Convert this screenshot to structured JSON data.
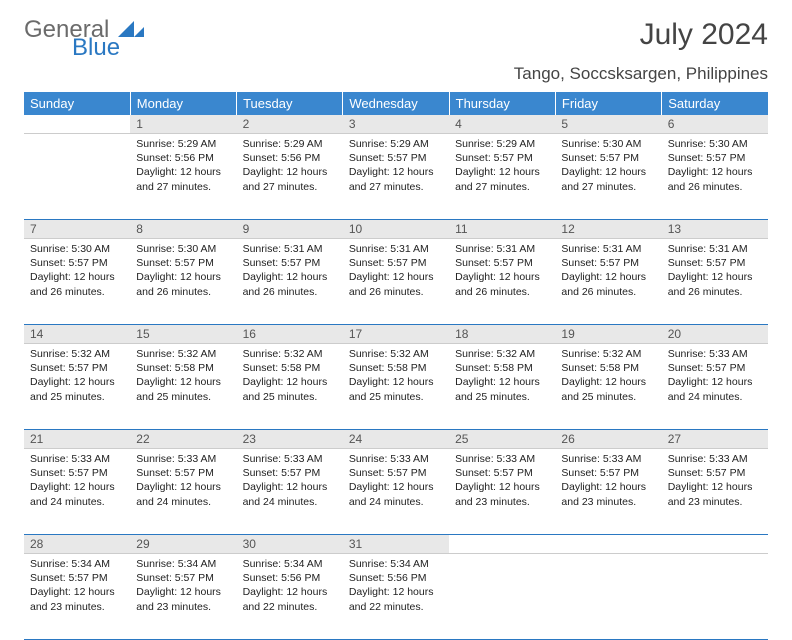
{
  "logo": {
    "word1": "General",
    "word2": "Blue"
  },
  "title": "July 2024",
  "location": "Tango, Soccsksargen, Philippines",
  "colors": {
    "header_bg": "#3a87cf",
    "header_text": "#ffffff",
    "daynum_bg": "#e8e8e8",
    "rule": "#2a78c2",
    "logo_gray": "#6b6b6b",
    "logo_blue": "#2a78c2"
  },
  "weekdays": [
    "Sunday",
    "Monday",
    "Tuesday",
    "Wednesday",
    "Thursday",
    "Friday",
    "Saturday"
  ],
  "weeks": [
    [
      null,
      {
        "n": "1",
        "sr": "5:29 AM",
        "ss": "5:56 PM",
        "dl": "12 hours and 27 minutes."
      },
      {
        "n": "2",
        "sr": "5:29 AM",
        "ss": "5:56 PM",
        "dl": "12 hours and 27 minutes."
      },
      {
        "n": "3",
        "sr": "5:29 AM",
        "ss": "5:57 PM",
        "dl": "12 hours and 27 minutes."
      },
      {
        "n": "4",
        "sr": "5:29 AM",
        "ss": "5:57 PM",
        "dl": "12 hours and 27 minutes."
      },
      {
        "n": "5",
        "sr": "5:30 AM",
        "ss": "5:57 PM",
        "dl": "12 hours and 27 minutes."
      },
      {
        "n": "6",
        "sr": "5:30 AM",
        "ss": "5:57 PM",
        "dl": "12 hours and 26 minutes."
      }
    ],
    [
      {
        "n": "7",
        "sr": "5:30 AM",
        "ss": "5:57 PM",
        "dl": "12 hours and 26 minutes."
      },
      {
        "n": "8",
        "sr": "5:30 AM",
        "ss": "5:57 PM",
        "dl": "12 hours and 26 minutes."
      },
      {
        "n": "9",
        "sr": "5:31 AM",
        "ss": "5:57 PM",
        "dl": "12 hours and 26 minutes."
      },
      {
        "n": "10",
        "sr": "5:31 AM",
        "ss": "5:57 PM",
        "dl": "12 hours and 26 minutes."
      },
      {
        "n": "11",
        "sr": "5:31 AM",
        "ss": "5:57 PM",
        "dl": "12 hours and 26 minutes."
      },
      {
        "n": "12",
        "sr": "5:31 AM",
        "ss": "5:57 PM",
        "dl": "12 hours and 26 minutes."
      },
      {
        "n": "13",
        "sr": "5:31 AM",
        "ss": "5:57 PM",
        "dl": "12 hours and 26 minutes."
      }
    ],
    [
      {
        "n": "14",
        "sr": "5:32 AM",
        "ss": "5:57 PM",
        "dl": "12 hours and 25 minutes."
      },
      {
        "n": "15",
        "sr": "5:32 AM",
        "ss": "5:58 PM",
        "dl": "12 hours and 25 minutes."
      },
      {
        "n": "16",
        "sr": "5:32 AM",
        "ss": "5:58 PM",
        "dl": "12 hours and 25 minutes."
      },
      {
        "n": "17",
        "sr": "5:32 AM",
        "ss": "5:58 PM",
        "dl": "12 hours and 25 minutes."
      },
      {
        "n": "18",
        "sr": "5:32 AM",
        "ss": "5:58 PM",
        "dl": "12 hours and 25 minutes."
      },
      {
        "n": "19",
        "sr": "5:32 AM",
        "ss": "5:58 PM",
        "dl": "12 hours and 25 minutes."
      },
      {
        "n": "20",
        "sr": "5:33 AM",
        "ss": "5:57 PM",
        "dl": "12 hours and 24 minutes."
      }
    ],
    [
      {
        "n": "21",
        "sr": "5:33 AM",
        "ss": "5:57 PM",
        "dl": "12 hours and 24 minutes."
      },
      {
        "n": "22",
        "sr": "5:33 AM",
        "ss": "5:57 PM",
        "dl": "12 hours and 24 minutes."
      },
      {
        "n": "23",
        "sr": "5:33 AM",
        "ss": "5:57 PM",
        "dl": "12 hours and 24 minutes."
      },
      {
        "n": "24",
        "sr": "5:33 AM",
        "ss": "5:57 PM",
        "dl": "12 hours and 24 minutes."
      },
      {
        "n": "25",
        "sr": "5:33 AM",
        "ss": "5:57 PM",
        "dl": "12 hours and 23 minutes."
      },
      {
        "n": "26",
        "sr": "5:33 AM",
        "ss": "5:57 PM",
        "dl": "12 hours and 23 minutes."
      },
      {
        "n": "27",
        "sr": "5:33 AM",
        "ss": "5:57 PM",
        "dl": "12 hours and 23 minutes."
      }
    ],
    [
      {
        "n": "28",
        "sr": "5:34 AM",
        "ss": "5:57 PM",
        "dl": "12 hours and 23 minutes."
      },
      {
        "n": "29",
        "sr": "5:34 AM",
        "ss": "5:57 PM",
        "dl": "12 hours and 23 minutes."
      },
      {
        "n": "30",
        "sr": "5:34 AM",
        "ss": "5:56 PM",
        "dl": "12 hours and 22 minutes."
      },
      {
        "n": "31",
        "sr": "5:34 AM",
        "ss": "5:56 PM",
        "dl": "12 hours and 22 minutes."
      },
      null,
      null,
      null
    ]
  ],
  "labels": {
    "sunrise": "Sunrise:",
    "sunset": "Sunset:",
    "daylight": "Daylight:"
  }
}
